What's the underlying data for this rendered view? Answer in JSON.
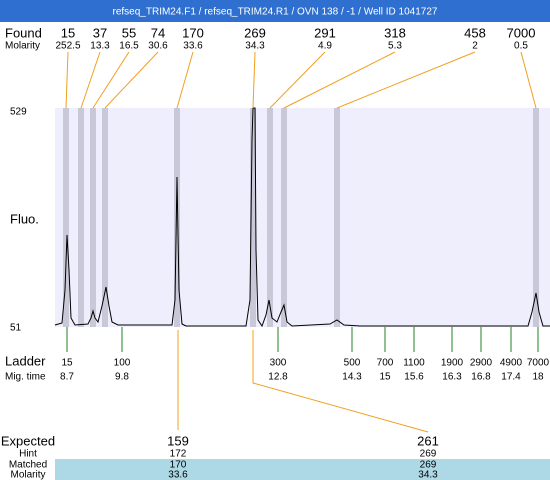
{
  "title": "refseq_TRIM24.F1 / refseq_TRIM24.R1 / OVN 138 / -1 / Well ID 1041727",
  "found": {
    "label": "Found",
    "molarity_label": "Molarity",
    "peaks": [
      {
        "size": 15,
        "molarity": 252.5
      },
      {
        "size": 37,
        "molarity": 13.3
      },
      {
        "size": 55,
        "molarity": 16.5
      },
      {
        "size": 74,
        "molarity": 30.6
      },
      {
        "size": 170,
        "molarity": 33.6
      },
      {
        "size": 269,
        "molarity": 34.3
      },
      {
        "size": 291,
        "molarity": 4.9
      },
      {
        "size": 318,
        "molarity": 5.3
      },
      {
        "size": 458,
        "molarity": 2
      },
      {
        "size": 7000,
        "molarity": 0.5
      }
    ]
  },
  "fluo": {
    "label": "Fluo.",
    "max": 529,
    "min": 51
  },
  "ladder": {
    "label": "Ladder",
    "mig_label": "Mig. time",
    "items": [
      {
        "size": 15,
        "time": 8.7
      },
      {
        "size": 100,
        "time": 9.8
      },
      {
        "size": 300,
        "time": 12.8
      },
      {
        "size": 500,
        "time": 14.3
      },
      {
        "size": 700,
        "time": 15
      },
      {
        "size": 1100,
        "time": 15.6
      },
      {
        "size": 1900,
        "time": 16.3
      },
      {
        "size": 2900,
        "time": 16.8
      },
      {
        "size": 4900,
        "time": 17.4
      },
      {
        "size": 7000,
        "time": 18
      }
    ]
  },
  "expected": {
    "label": "Expected",
    "hint_label": "Hint",
    "matched_label": "Matched",
    "molarity_label": "Molarity",
    "columns": [
      {
        "expected": 159,
        "hint": 172,
        "matched": 170,
        "molarity": 33.6
      },
      {
        "expected": 261,
        "hint": 269,
        "matched": 269,
        "molarity": 34.3
      }
    ]
  }
}
